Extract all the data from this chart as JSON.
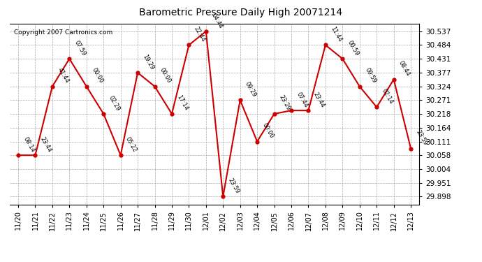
{
  "title": "Barometric Pressure Daily High 20071214",
  "copyright": "Copyright 2007 Cartronics.com",
  "dates": [
    "11/20",
    "11/21",
    "11/22",
    "11/23",
    "11/24",
    "11/25",
    "11/26",
    "11/27",
    "11/28",
    "11/29",
    "11/30",
    "12/01",
    "12/02",
    "12/03",
    "12/04",
    "12/05",
    "12/06",
    "12/07",
    "12/08",
    "12/09",
    "12/10",
    "12/11",
    "12/12",
    "12/13"
  ],
  "values": [
    30.058,
    30.058,
    30.324,
    30.431,
    30.324,
    30.218,
    30.058,
    30.377,
    30.324,
    30.218,
    30.484,
    30.537,
    29.898,
    30.271,
    30.111,
    30.218,
    30.231,
    30.231,
    30.484,
    30.431,
    30.324,
    30.244,
    30.351,
    30.084
  ],
  "time_labels": [
    "08:14",
    "23:44",
    "41:44",
    "07:59",
    "00:00",
    "02:29",
    "05:22",
    "19:29",
    "00:00",
    "17:14",
    "22:44",
    "04:44",
    "23:59",
    "09:29",
    "00:00",
    "23:29",
    "07:44",
    "23:44",
    "11:44",
    "00:59",
    "09:59",
    "02:14",
    "08:44",
    "23:59"
  ],
  "line_color": "#cc0000",
  "marker_color": "#cc0000",
  "background_color": "#ffffff",
  "grid_color": "#aaaaaa",
  "yticks": [
    29.898,
    29.951,
    30.004,
    30.058,
    30.111,
    30.164,
    30.218,
    30.271,
    30.324,
    30.377,
    30.431,
    30.484,
    30.537
  ],
  "ymin": 29.868,
  "ymax": 30.567
}
